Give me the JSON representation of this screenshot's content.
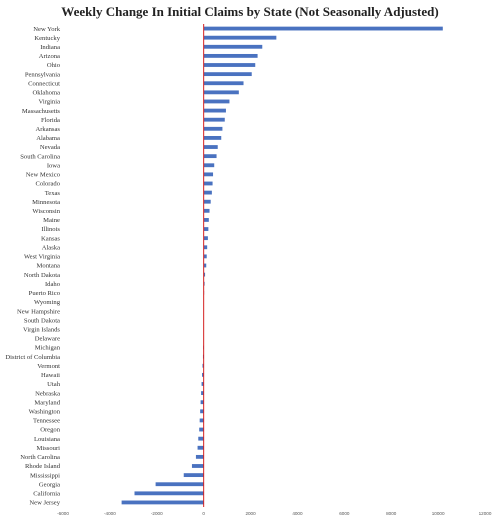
{
  "chart_data": {
    "type": "bar",
    "orientation": "horizontal",
    "title": "Weekly Change In Initial Claims by State (Not Seasonally Adjusted)",
    "xlabel": "",
    "ylabel": "",
    "xlim": [
      -6000,
      12000
    ],
    "xticks": [
      -6000,
      -4000,
      -2000,
      0,
      2000,
      4000,
      6000,
      8000,
      10000,
      12000
    ],
    "grid": false,
    "bar_color": "#4a72c0",
    "zero_line_color": "#d42020",
    "categories": [
      "New York",
      "Kentucky",
      "Indiana",
      "Arizona",
      "Ohio",
      "Pennsylvania",
      "Connecticut",
      "Oklahoma",
      "Virginia",
      "Massachusetts",
      "Florida",
      "Arkansas",
      "Alabama",
      "Nevada",
      "South Carolina",
      "Iowa",
      "New Mexico",
      "Colorado",
      "Texas",
      "Minnesota",
      "Wisconsin",
      "Maine",
      "Illinois",
      "Kansas",
      "Alaska",
      "West Virginia",
      "Montana",
      "North Dakota",
      "Idaho",
      "Puerto Rico",
      "Wyoming",
      "New Hampshire",
      "South Dakota",
      "Virgin Islands",
      "Delaware",
      "Michigan",
      "District of Columbia",
      "Vermont",
      "Hawaii",
      "Utah",
      "Nebraska",
      "Maryland",
      "Washington",
      "Tennessee",
      "Oregon",
      "Louisiana",
      "Missouri",
      "North Carolina",
      "Rhode Island",
      "Mississippi",
      "Georgia",
      "California",
      "New Jersey"
    ],
    "values": [
      10200,
      3100,
      2500,
      2300,
      2200,
      2050,
      1700,
      1500,
      1100,
      950,
      900,
      800,
      750,
      600,
      550,
      450,
      400,
      380,
      350,
      300,
      250,
      220,
      200,
      180,
      150,
      130,
      110,
      60,
      40,
      20,
      10,
      5,
      0,
      0,
      0,
      -20,
      -30,
      -50,
      -70,
      -90,
      -110,
      -130,
      -150,
      -170,
      -190,
      -230,
      -260,
      -330,
      -500,
      -850,
      -2050,
      -2950,
      -3500
    ]
  }
}
